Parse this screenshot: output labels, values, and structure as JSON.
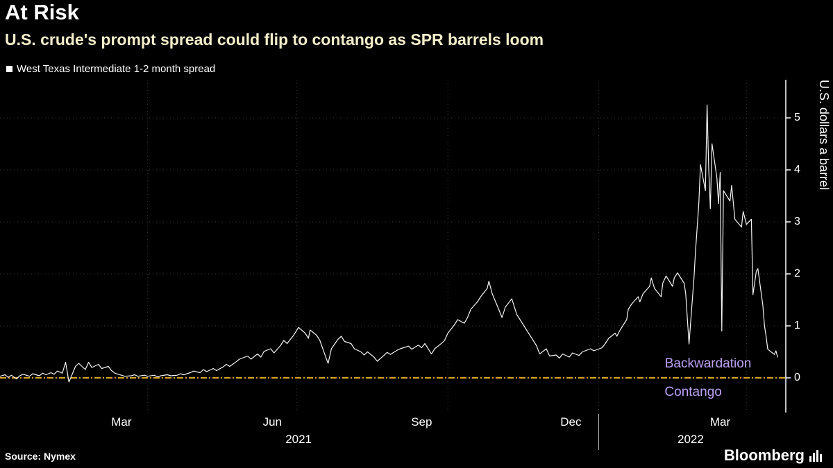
{
  "header": {
    "title": "At Risk",
    "subtitle": "U.S. crude's prompt spread could flip to contango as SPR barrels loom"
  },
  "legend": {
    "label": "West Texas Intermediate 1-2 month spread"
  },
  "footer": {
    "source": "Source: Nymex",
    "logo": "Bloomberg"
  },
  "colors": {
    "background": "#000000",
    "title": "#ffffff",
    "subtitle": "#f4eec9",
    "series": "#f5f5f5",
    "zero_line": "#d9a521",
    "annotation": "#bfa2f5",
    "grid": "#3c3c3c",
    "axis": "#ffffff"
  },
  "chart_data": {
    "type": "line",
    "title": "At Risk",
    "subtitle": "U.S. crude's prompt spread could flip to contango as SPR barrels loom",
    "y_axis_label": "U.S. dollars a barrel",
    "y_ticks": [
      0,
      1,
      2,
      3,
      4,
      5
    ],
    "y_min": -0.667,
    "y_max": 5.733,
    "zero_line_value": 0,
    "grid_on": true,
    "legend_position": "top-left",
    "x_domain": [
      "2021-01-01",
      "2022-04-25"
    ],
    "grid_dates": [
      "2021-04-01",
      "2021-07-01",
      "2021-10-01",
      "2022-01-01",
      "2022-04-01"
    ],
    "x_ticks": [
      {
        "label": "Mar",
        "date": "2021-03-16"
      },
      {
        "label": "Jun",
        "date": "2021-06-16"
      },
      {
        "label": "Sep",
        "date": "2021-09-15"
      },
      {
        "label": "Dec",
        "date": "2021-12-15"
      },
      {
        "label": "Mar",
        "date": "2022-03-16"
      }
    ],
    "year_labels": [
      {
        "label": "2021",
        "date": "2021-07-02"
      },
      {
        "label": "2022",
        "date": "2022-02-26"
      }
    ],
    "year_separator_date": "2022-01-01",
    "annotations": [
      {
        "text": "Backwardation",
        "anchor_date": "2022-04-04",
        "value": 0,
        "dy": -31,
        "align": "right"
      },
      {
        "text": "Contango",
        "anchor_date": "2022-03-17",
        "value": 0,
        "dy": 10,
        "align": "right"
      }
    ],
    "series": [
      {
        "name": "West Texas Intermediate 1-2 month spread",
        "points": [
          [
            "2021-01-01",
            0.03
          ],
          [
            "2021-01-04",
            0.06
          ],
          [
            "2021-01-06",
            0.01
          ],
          [
            "2021-01-08",
            0.05
          ],
          [
            "2021-01-11",
            -0.02
          ],
          [
            "2021-01-13",
            0.04
          ],
          [
            "2021-01-15",
            0.07
          ],
          [
            "2021-01-19",
            0.03
          ],
          [
            "2021-01-21",
            0.08
          ],
          [
            "2021-01-25",
            0.04
          ],
          [
            "2021-01-27",
            0.09
          ],
          [
            "2021-01-29",
            0.06
          ],
          [
            "2021-02-01",
            0.1
          ],
          [
            "2021-02-03",
            0.07
          ],
          [
            "2021-02-05",
            0.13
          ],
          [
            "2021-02-08",
            0.09
          ],
          [
            "2021-02-10",
            0.3
          ],
          [
            "2021-02-12",
            -0.08
          ],
          [
            "2021-02-16",
            0.22
          ],
          [
            "2021-02-18",
            0.28
          ],
          [
            "2021-02-22",
            0.16
          ],
          [
            "2021-02-24",
            0.3
          ],
          [
            "2021-02-26",
            0.2
          ],
          [
            "2021-03-02",
            0.26
          ],
          [
            "2021-03-04",
            0.18
          ],
          [
            "2021-03-08",
            0.22
          ],
          [
            "2021-03-10",
            0.14
          ],
          [
            "2021-03-12",
            0.09
          ],
          [
            "2021-03-16",
            0.05
          ],
          [
            "2021-03-18",
            0.03
          ],
          [
            "2021-03-22",
            0.04
          ],
          [
            "2021-03-24",
            0.06
          ],
          [
            "2021-03-26",
            0.03
          ],
          [
            "2021-03-30",
            0.05
          ],
          [
            "2021-04-01",
            0.03
          ],
          [
            "2021-04-05",
            0.05
          ],
          [
            "2021-04-07",
            0.02
          ],
          [
            "2021-04-09",
            0.04
          ],
          [
            "2021-04-13",
            0.06
          ],
          [
            "2021-04-15",
            0.04
          ],
          [
            "2021-04-19",
            0.05
          ],
          [
            "2021-04-21",
            0.08
          ],
          [
            "2021-04-23",
            0.06
          ],
          [
            "2021-04-27",
            0.1
          ],
          [
            "2021-04-29",
            0.13
          ],
          [
            "2021-05-03",
            0.1
          ],
          [
            "2021-05-05",
            0.16
          ],
          [
            "2021-05-07",
            0.12
          ],
          [
            "2021-05-11",
            0.18
          ],
          [
            "2021-05-13",
            0.14
          ],
          [
            "2021-05-17",
            0.21
          ],
          [
            "2021-05-19",
            0.26
          ],
          [
            "2021-05-21",
            0.22
          ],
          [
            "2021-05-25",
            0.31
          ],
          [
            "2021-05-27",
            0.36
          ],
          [
            "2021-06-01",
            0.42
          ],
          [
            "2021-06-03",
            0.36
          ],
          [
            "2021-06-07",
            0.46
          ],
          [
            "2021-06-09",
            0.4
          ],
          [
            "2021-06-11",
            0.51
          ],
          [
            "2021-06-15",
            0.56
          ],
          [
            "2021-06-17",
            0.48
          ],
          [
            "2021-06-21",
            0.62
          ],
          [
            "2021-06-23",
            0.72
          ],
          [
            "2021-06-25",
            0.66
          ],
          [
            "2021-06-29",
            0.82
          ],
          [
            "2021-07-01",
            0.92
          ],
          [
            "2021-07-02",
            0.97
          ],
          [
            "2021-07-06",
            0.86
          ],
          [
            "2021-07-08",
            0.76
          ],
          [
            "2021-07-09",
            0.92
          ],
          [
            "2021-07-13",
            0.82
          ],
          [
            "2021-07-15",
            0.72
          ],
          [
            "2021-07-19",
            0.36
          ],
          [
            "2021-07-20",
            0.28
          ],
          [
            "2021-07-22",
            0.56
          ],
          [
            "2021-07-26",
            0.74
          ],
          [
            "2021-07-28",
            0.8
          ],
          [
            "2021-07-30",
            0.7
          ],
          [
            "2021-08-03",
            0.66
          ],
          [
            "2021-08-05",
            0.56
          ],
          [
            "2021-08-09",
            0.5
          ],
          [
            "2021-08-11",
            0.44
          ],
          [
            "2021-08-13",
            0.5
          ],
          [
            "2021-08-17",
            0.4
          ],
          [
            "2021-08-19",
            0.32
          ],
          [
            "2021-08-23",
            0.43
          ],
          [
            "2021-08-25",
            0.49
          ],
          [
            "2021-08-27",
            0.45
          ],
          [
            "2021-08-31",
            0.53
          ],
          [
            "2021-09-02",
            0.56
          ],
          [
            "2021-09-07",
            0.61
          ],
          [
            "2021-09-09",
            0.55
          ],
          [
            "2021-09-13",
            0.63
          ],
          [
            "2021-09-15",
            0.58
          ],
          [
            "2021-09-17",
            0.66
          ],
          [
            "2021-09-21",
            0.46
          ],
          [
            "2021-09-23",
            0.56
          ],
          [
            "2021-09-27",
            0.66
          ],
          [
            "2021-09-29",
            0.72
          ],
          [
            "2021-10-01",
            0.86
          ],
          [
            "2021-10-05",
            1.02
          ],
          [
            "2021-10-07",
            1.12
          ],
          [
            "2021-10-11",
            1.05
          ],
          [
            "2021-10-13",
            1.16
          ],
          [
            "2021-10-15",
            1.32
          ],
          [
            "2021-10-19",
            1.46
          ],
          [
            "2021-10-21",
            1.56
          ],
          [
            "2021-10-25",
            1.72
          ],
          [
            "2021-10-26",
            1.86
          ],
          [
            "2021-10-28",
            1.62
          ],
          [
            "2021-11-01",
            1.32
          ],
          [
            "2021-11-03",
            1.16
          ],
          [
            "2021-11-05",
            1.36
          ],
          [
            "2021-11-09",
            1.52
          ],
          [
            "2021-11-10",
            1.42
          ],
          [
            "2021-11-12",
            1.22
          ],
          [
            "2021-11-16",
            1.02
          ],
          [
            "2021-11-18",
            0.92
          ],
          [
            "2021-11-22",
            0.72
          ],
          [
            "2021-11-24",
            0.62
          ],
          [
            "2021-11-26",
            0.46
          ],
          [
            "2021-11-30",
            0.56
          ],
          [
            "2021-12-02",
            0.42
          ],
          [
            "2021-12-06",
            0.44
          ],
          [
            "2021-12-08",
            0.38
          ],
          [
            "2021-12-10",
            0.46
          ],
          [
            "2021-12-14",
            0.4
          ],
          [
            "2021-12-16",
            0.48
          ],
          [
            "2021-12-20",
            0.43
          ],
          [
            "2021-12-22",
            0.5
          ],
          [
            "2021-12-27",
            0.56
          ],
          [
            "2021-12-29",
            0.52
          ],
          [
            "2022-01-03",
            0.58
          ],
          [
            "2022-01-05",
            0.66
          ],
          [
            "2022-01-07",
            0.76
          ],
          [
            "2022-01-11",
            0.86
          ],
          [
            "2022-01-12",
            0.8
          ],
          [
            "2022-01-14",
            0.92
          ],
          [
            "2022-01-18",
            1.12
          ],
          [
            "2022-01-19",
            1.32
          ],
          [
            "2022-01-21",
            1.42
          ],
          [
            "2022-01-25",
            1.56
          ],
          [
            "2022-01-26",
            1.46
          ],
          [
            "2022-01-28",
            1.62
          ],
          [
            "2022-02-01",
            1.76
          ],
          [
            "2022-02-02",
            1.92
          ],
          [
            "2022-02-04",
            1.72
          ],
          [
            "2022-02-08",
            1.56
          ],
          [
            "2022-02-09",
            1.82
          ],
          [
            "2022-02-11",
            1.96
          ],
          [
            "2022-02-15",
            1.76
          ],
          [
            "2022-02-16",
            1.92
          ],
          [
            "2022-02-18",
            2.02
          ],
          [
            "2022-02-22",
            1.82
          ],
          [
            "2022-02-23",
            1.62
          ],
          [
            "2022-02-25",
            0.65
          ],
          [
            "2022-02-28",
            1.92
          ],
          [
            "2022-03-01",
            2.45
          ],
          [
            "2022-03-03",
            3.35
          ],
          [
            "2022-03-04",
            4.1
          ],
          [
            "2022-03-07",
            3.6
          ],
          [
            "2022-03-08",
            5.25
          ],
          [
            "2022-03-09",
            4.05
          ],
          [
            "2022-03-10",
            3.25
          ],
          [
            "2022-03-11",
            4.5
          ],
          [
            "2022-03-14",
            3.85
          ],
          [
            "2022-03-15",
            3.35
          ],
          [
            "2022-03-16",
            3.95
          ],
          [
            "2022-03-17",
            0.9
          ],
          [
            "2022-03-18",
            3.6
          ],
          [
            "2022-03-22",
            3.4
          ],
          [
            "2022-03-23",
            3.7
          ],
          [
            "2022-03-25",
            3.05
          ],
          [
            "2022-03-29",
            2.9
          ],
          [
            "2022-03-30",
            3.2
          ],
          [
            "2022-04-01",
            2.95
          ],
          [
            "2022-04-04",
            3.05
          ],
          [
            "2022-04-05",
            1.6
          ],
          [
            "2022-04-07",
            2.05
          ],
          [
            "2022-04-08",
            2.1
          ],
          [
            "2022-04-11",
            1.4
          ],
          [
            "2022-04-12",
            1.0
          ],
          [
            "2022-04-13",
            0.8
          ],
          [
            "2022-04-14",
            0.55
          ],
          [
            "2022-04-18",
            0.45
          ],
          [
            "2022-04-19",
            0.52
          ],
          [
            "2022-04-20",
            0.4
          ]
        ]
      }
    ]
  }
}
